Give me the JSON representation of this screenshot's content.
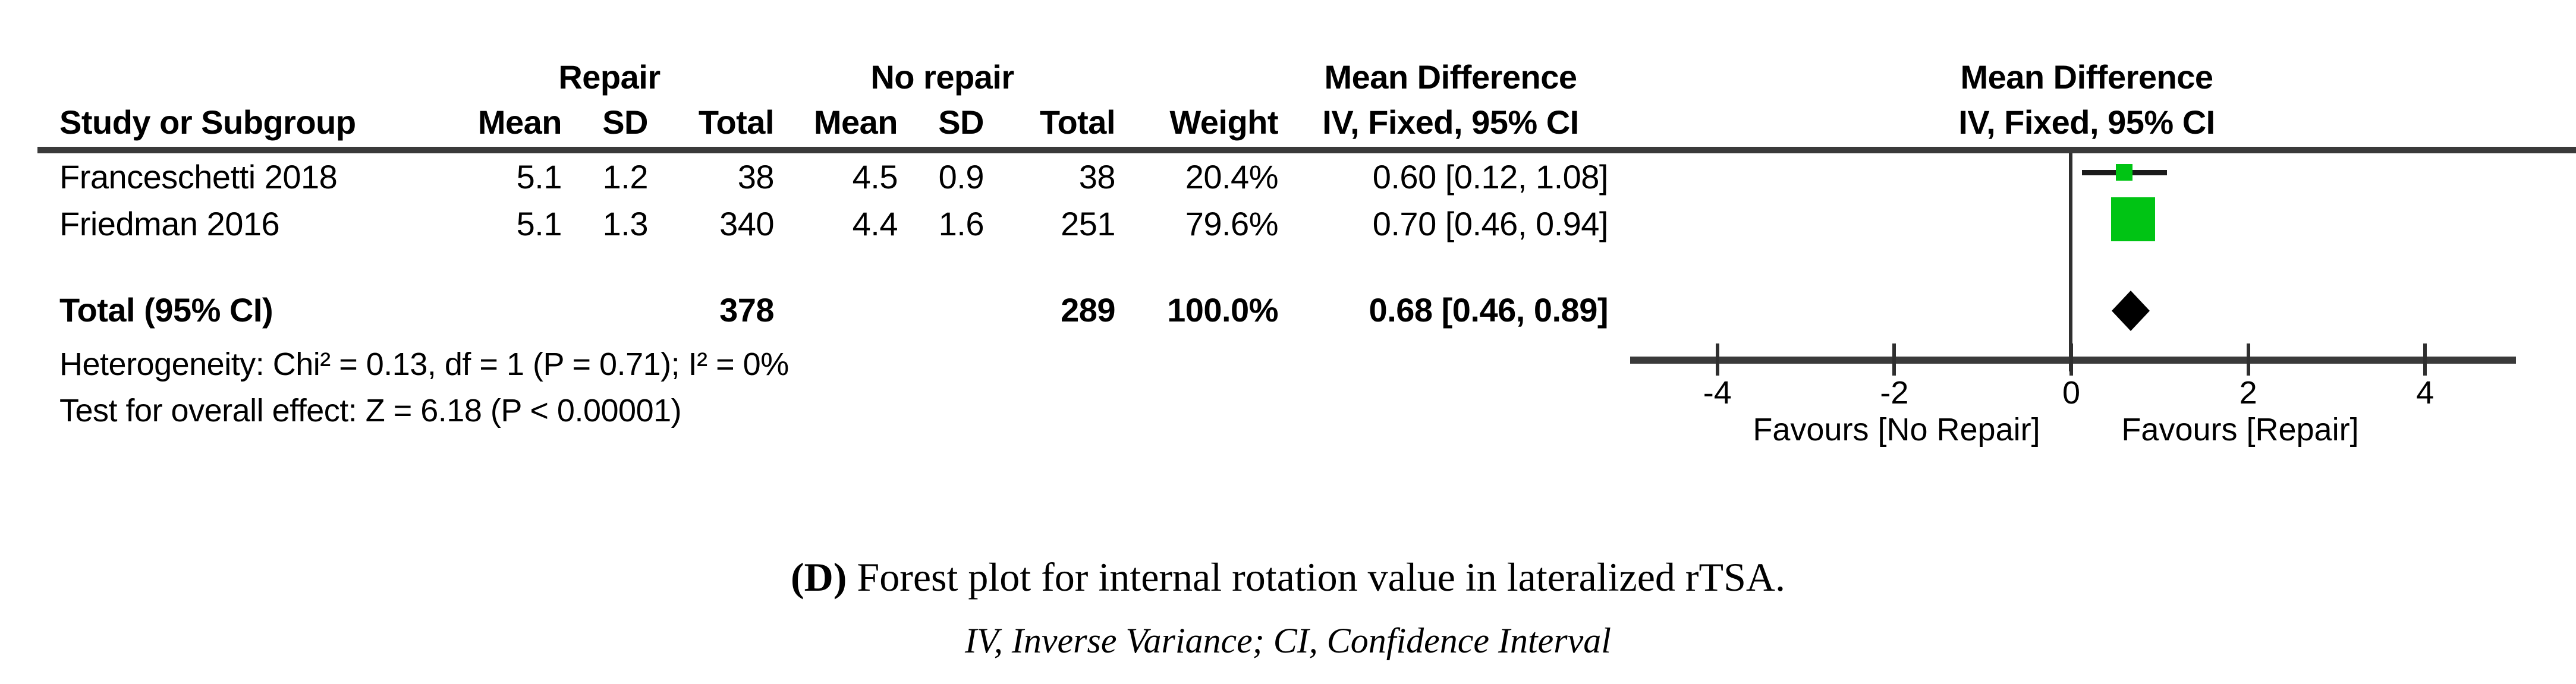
{
  "header": {
    "group_repair": "Repair",
    "group_no_repair": "No repair",
    "md_title": "Mean Difference",
    "md_subtitle": "IV, Fixed, 95% CI",
    "plot_md_title": "Mean Difference",
    "plot_md_subtitle": "IV, Fixed, 95% CI",
    "study": "Study or Subgroup",
    "mean1": "Mean",
    "sd1": "SD",
    "total1": "Total",
    "mean2": "Mean",
    "sd2": "SD",
    "total2": "Total",
    "weight": "Weight"
  },
  "rows": [
    {
      "study": "Franceschetti 2018",
      "mean1": "5.1",
      "sd1": "1.2",
      "total1": "38",
      "mean2": "4.5",
      "sd2": "0.9",
      "total2": "38",
      "weight": "20.4%",
      "ci": "0.60 [0.12, 1.08]"
    },
    {
      "study": "Friedman 2016",
      "mean1": "5.1",
      "sd1": "1.3",
      "total1": "340",
      "mean2": "4.4",
      "sd2": "1.6",
      "total2": "251",
      "weight": "79.6%",
      "ci": "0.70 [0.46, 0.94]"
    }
  ],
  "total_row": {
    "label": "Total (95% CI)",
    "total1": "378",
    "total2": "289",
    "weight": "100.0%",
    "ci": "0.68 [0.46, 0.89]"
  },
  "footnotes": {
    "heterogeneity": "Heterogeneity: Chi² = 0.13, df = 1 (P = 0.71); I² = 0%",
    "overall_effect": "Test for overall effect: Z = 6.18 (P < 0.00001)"
  },
  "axis_labels": {
    "favours_left": "Favours [No Repair]",
    "favours_right": "Favours [Repair]"
  },
  "caption": {
    "label": "(D)",
    "line1": " Forest plot for internal rotation value in lateralized rTSA.",
    "line2": "IV, Inverse Variance; CI, Confidence Interval"
  },
  "colors": {
    "marker_green": "#00c414",
    "diamond_black": "#000000",
    "line_dark": "#3a3a3a",
    "axis_dark": "#2f2f2f",
    "ci_line": "#1a1a1a"
  },
  "chart_data": {
    "type": "forest",
    "effect_measure": "Mean Difference (IV, Fixed, 95% CI)",
    "studies": [
      {
        "name": "Franceschetti 2018",
        "repair": {
          "mean": 5.1,
          "sd": 1.2,
          "total": 38
        },
        "no_repair": {
          "mean": 4.5,
          "sd": 0.9,
          "total": 38
        },
        "weight_pct": 20.4,
        "md": 0.6,
        "ci_low": 0.12,
        "ci_high": 1.08
      },
      {
        "name": "Friedman 2016",
        "repair": {
          "mean": 5.1,
          "sd": 1.3,
          "total": 340
        },
        "no_repair": {
          "mean": 4.4,
          "sd": 1.6,
          "total": 251
        },
        "weight_pct": 79.6,
        "md": 0.7,
        "ci_low": 0.46,
        "ci_high": 0.94
      }
    ],
    "total": {
      "repair_total": 378,
      "no_repair_total": 289,
      "weight_pct": 100.0,
      "md": 0.68,
      "ci_low": 0.46,
      "ci_high": 0.89
    },
    "heterogeneity": {
      "chi2": 0.13,
      "df": 1,
      "p": 0.71,
      "i2_pct": 0
    },
    "overall_effect": {
      "z": 6.18,
      "p": "< 0.00001"
    },
    "xaxis": {
      "ticks": [
        -4,
        -2,
        0,
        2,
        4
      ],
      "range": [
        -5,
        5
      ]
    },
    "favours": [
      "Favours [No Repair]",
      "Favours [Repair]"
    ],
    "grid": false,
    "legend": false
  }
}
